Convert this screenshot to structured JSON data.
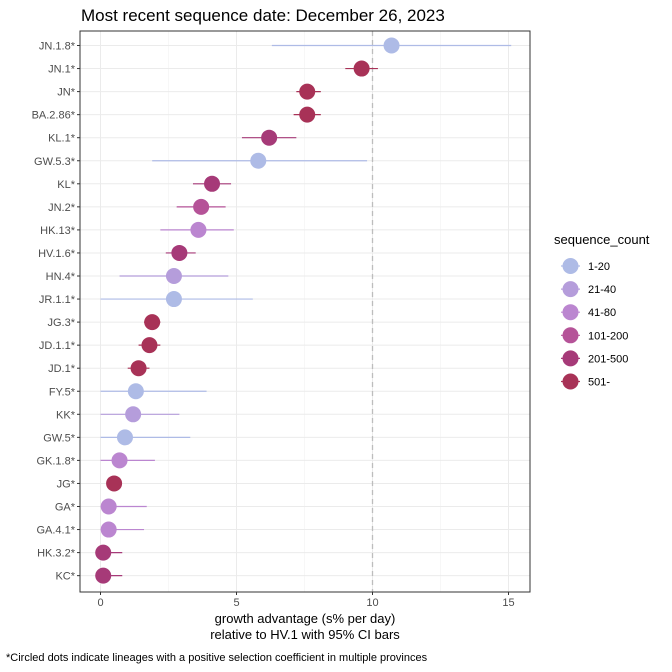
{
  "chart_data": {
    "type": "scatter",
    "title": "Most recent sequence date: December 26, 2023",
    "xlabel": [
      "growth advantage (s% per day)",
      "relative to  HV.1  with 95% CI bars"
    ],
    "ylabel": "",
    "xlim": [
      -0.8,
      15.8
    ],
    "xticks": [
      0,
      5,
      10,
      15
    ],
    "reference_line_x": 10,
    "grid": true,
    "legend": {
      "title": "sequence_count",
      "placement": "right",
      "entries": [
        {
          "label": "1-20",
          "color": "#aebbe6"
        },
        {
          "label": "21-40",
          "color": "#b59ddb"
        },
        {
          "label": "41-80",
          "color": "#bb86d0"
        },
        {
          "label": "101-200",
          "color": "#b55398"
        },
        {
          "label": "201-500",
          "color": "#a63a78"
        },
        {
          "label": "501-",
          "color": "#a83257"
        }
      ]
    },
    "points": [
      {
        "lineage": "JN.1.8*",
        "value": 10.7,
        "lo": 6.3,
        "hi": 15.1,
        "group": "1-20"
      },
      {
        "lineage": "JN.1*",
        "value": 9.6,
        "lo": 9.0,
        "hi": 10.2,
        "group": "501-"
      },
      {
        "lineage": "JN*",
        "value": 7.6,
        "lo": 7.2,
        "hi": 8.1,
        "group": "501-"
      },
      {
        "lineage": "BA.2.86*",
        "value": 7.6,
        "lo": 7.1,
        "hi": 8.1,
        "group": "501-"
      },
      {
        "lineage": "KL.1*",
        "value": 6.2,
        "lo": 5.2,
        "hi": 7.2,
        "group": "201-500"
      },
      {
        "lineage": "GW.5.3*",
        "value": 5.8,
        "lo": 1.9,
        "hi": 9.8,
        "group": "1-20"
      },
      {
        "lineage": "KL*",
        "value": 4.1,
        "lo": 3.4,
        "hi": 4.8,
        "group": "201-500"
      },
      {
        "lineage": "JN.2*",
        "value": 3.7,
        "lo": 2.8,
        "hi": 4.6,
        "group": "101-200"
      },
      {
        "lineage": "HK.13*",
        "value": 3.6,
        "lo": 2.2,
        "hi": 4.9,
        "group": "41-80"
      },
      {
        "lineage": "HV.1.6*",
        "value": 2.9,
        "lo": 2.4,
        "hi": 3.5,
        "group": "201-500"
      },
      {
        "lineage": "HN.4*",
        "value": 2.7,
        "lo": 0.7,
        "hi": 4.7,
        "group": "21-40"
      },
      {
        "lineage": "JR.1.1*",
        "value": 2.7,
        "lo": 0.0,
        "hi": 5.6,
        "group": "1-20"
      },
      {
        "lineage": "JG.3*",
        "value": 1.9,
        "lo": 1.6,
        "hi": 2.2,
        "group": "501-"
      },
      {
        "lineage": "JD.1.1*",
        "value": 1.8,
        "lo": 1.4,
        "hi": 2.2,
        "group": "501-"
      },
      {
        "lineage": "JD.1*",
        "value": 1.4,
        "lo": 1.0,
        "hi": 1.8,
        "group": "501-"
      },
      {
        "lineage": "FY.5*",
        "value": 1.3,
        "lo": 0.0,
        "hi": 3.9,
        "group": "1-20"
      },
      {
        "lineage": "KK*",
        "value": 1.2,
        "lo": 0.0,
        "hi": 2.9,
        "group": "21-40"
      },
      {
        "lineage": "GW.5*",
        "value": 0.9,
        "lo": 0.0,
        "hi": 3.3,
        "group": "1-20"
      },
      {
        "lineage": "GK.1.8*",
        "value": 0.7,
        "lo": 0.0,
        "hi": 2.0,
        "group": "41-80"
      },
      {
        "lineage": "JG*",
        "value": 0.5,
        "lo": 0.3,
        "hi": 0.7,
        "group": "501-"
      },
      {
        "lineage": "GA*",
        "value": 0.3,
        "lo": 0.0,
        "hi": 1.7,
        "group": "41-80"
      },
      {
        "lineage": "GA.4.1*",
        "value": 0.3,
        "lo": 0.0,
        "hi": 1.6,
        "group": "41-80"
      },
      {
        "lineage": "HK.3.2*",
        "value": 0.1,
        "lo": 0.0,
        "hi": 0.8,
        "group": "201-500"
      },
      {
        "lineage": "KC*",
        "value": 0.1,
        "lo": 0.0,
        "hi": 0.8,
        "group": "201-500"
      }
    ]
  },
  "caption": "*Circled dots indicate lineages with a positive selection coefficient in multiple provinces"
}
